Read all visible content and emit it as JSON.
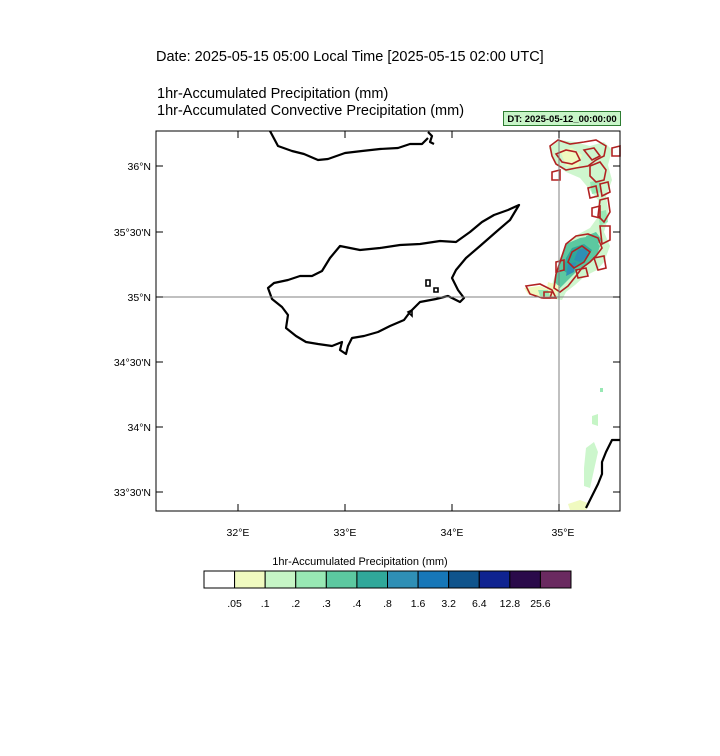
{
  "header": {
    "date_line": "Date: 2025-05-15  05:00 Local Time [2025-05-15  02:00 UTC]",
    "field_1": "1hr-Accumulated Precipitation   (mm)",
    "field_2": "1hr-Accumulated Convective Precipitation   (mm)",
    "dt_badge": "DT: 2025-05-12_00:00:00"
  },
  "map": {
    "lat_labels": [
      "36°N",
      "35°30'N",
      "35°N",
      "34°30'N",
      "34°N",
      "33°30'N"
    ],
    "lon_labels": [
      "32°E",
      "33°E",
      "34°E",
      "35°E"
    ],
    "reference_lines": [
      "35°N",
      "35°E"
    ],
    "coastline_color": "#000000",
    "convective_contour_color": "#b22222"
  },
  "colorbar": {
    "title": "1hr-Accumulated Precipitation  (mm)",
    "colors": [
      "#ffffff",
      "#f0fac0",
      "#c6f5c6",
      "#98e8b4",
      "#5cc8a0",
      "#30a89a",
      "#2f8fb5",
      "#1777b8",
      "#10548c",
      "#0f2390",
      "#2a0a4a",
      "#6a2a60"
    ],
    "tick_labels": [
      ".05",
      ".1",
      ".2",
      ".3",
      ".4",
      ".8",
      "1.6",
      "3.2",
      "6.4",
      "12.8",
      "25.6"
    ]
  }
}
